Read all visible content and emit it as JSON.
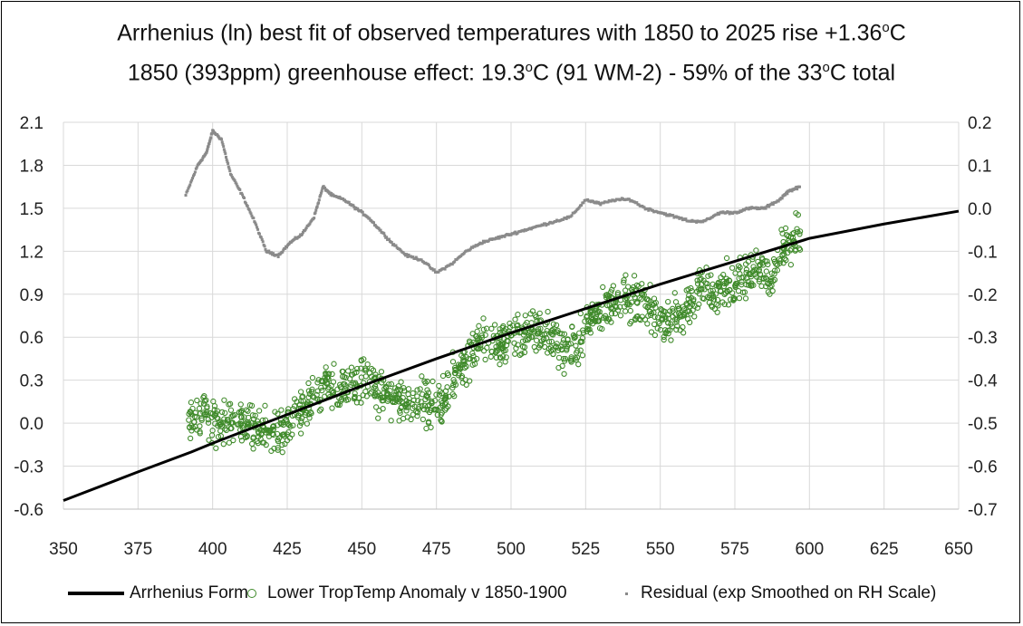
{
  "title": {
    "line1_pre": "Arrhenius (ln) best fit of observed temperatures with 1850 to 2025 rise +1.36",
    "line1_sup": "o",
    "line1_post": "C",
    "line2_pre": "1850 (393ppm) greenhouse effect: 19.3",
    "line2_sup1": "o",
    "line2_mid": "C (91 WM-2) - 59% of the 33",
    "line2_sup2": "o",
    "line2_post": "C total"
  },
  "legend": {
    "arrhenius": "Arrhenius Form",
    "anomaly": "Lower TropTemp Anomaly v 1850-1900",
    "residual": "Residual (exp Smoothed on RH Scale)"
  },
  "colors": {
    "arrhenius": "#000000",
    "anomaly": "#3f8a2a",
    "residual": "#8a8a8a",
    "grid": "#d9d9d9"
  },
  "chart_data": {
    "type": "scatter",
    "xlim": [
      350,
      650
    ],
    "ylim_left": [
      -0.6,
      2.1
    ],
    "ylim_right": [
      -0.7,
      0.2
    ],
    "x_ticks": [
      "350",
      "375",
      "400",
      "425",
      "450",
      "475",
      "500",
      "525",
      "550",
      "575",
      "600",
      "625",
      "650"
    ],
    "y_ticks_left": [
      "2.1",
      "1.8",
      "1.5",
      "1.2",
      "0.9",
      "0.6",
      "0.3",
      "0.0",
      "-0.3",
      "-0.6"
    ],
    "y_ticks_right": [
      "0.2",
      "0.1",
      "0.0",
      "-0.1",
      "-0.2",
      "-0.3",
      "-0.4",
      "-0.5",
      "-0.6",
      "-0.7"
    ],
    "grid": true,
    "legend_position": "bottom",
    "arrhenius_form": {
      "name": "Arrhenius Form",
      "x": [
        350,
        375,
        393,
        400,
        425,
        450,
        475,
        500,
        525,
        550,
        575,
        600,
        625,
        650
      ],
      "y": [
        -0.54,
        -0.34,
        -0.2,
        -0.14,
        0.06,
        0.26,
        0.45,
        0.63,
        0.8,
        0.97,
        1.13,
        1.29,
        1.39,
        1.48
      ]
    },
    "anomaly_trend": {
      "name": "Lower TropTemp Anomaly v 1850-1900",
      "x": [
        392,
        397,
        402,
        407,
        412,
        417,
        422,
        427,
        432,
        437,
        442,
        447,
        452,
        457,
        462,
        467,
        472,
        477,
        482,
        487,
        492,
        497,
        502,
        507,
        512,
        517,
        522,
        527,
        532,
        537,
        542,
        547,
        552,
        557,
        562,
        567,
        572,
        577,
        582,
        587,
        592,
        597
      ],
      "y": [
        0.02,
        0.05,
        0.0,
        0.02,
        -0.03,
        -0.05,
        -0.1,
        0.05,
        0.12,
        0.28,
        0.26,
        0.25,
        0.3,
        0.2,
        0.18,
        0.15,
        0.15,
        0.12,
        0.38,
        0.5,
        0.6,
        0.55,
        0.6,
        0.62,
        0.65,
        0.5,
        0.55,
        0.75,
        0.82,
        0.86,
        0.85,
        0.8,
        0.7,
        0.75,
        0.9,
        0.95,
        0.95,
        1.02,
        1.1,
        1.0,
        1.25,
        1.35
      ],
      "spread": 0.22,
      "points_per_segment": 32
    },
    "residual": {
      "name": "Residual (exp Smoothed on RH Scale)",
      "axis": "right",
      "x": [
        391,
        395,
        398,
        400,
        403,
        406,
        410,
        414,
        418,
        422,
        426,
        430,
        434,
        437,
        440,
        444,
        448,
        452,
        456,
        460,
        465,
        470,
        475,
        480,
        485,
        490,
        495,
        500,
        505,
        510,
        515,
        520,
        525,
        530,
        535,
        540,
        545,
        550,
        555,
        560,
        565,
        570,
        575,
        580,
        585,
        590,
        593,
        597
      ],
      "y": [
        0.03,
        0.1,
        0.13,
        0.18,
        0.16,
        0.08,
        0.03,
        -0.03,
        -0.1,
        -0.11,
        -0.08,
        -0.06,
        -0.02,
        0.05,
        0.03,
        0.02,
        0.0,
        -0.02,
        -0.05,
        -0.08,
        -0.11,
        -0.12,
        -0.15,
        -0.13,
        -0.1,
        -0.08,
        -0.07,
        -0.06,
        -0.05,
        -0.04,
        -0.03,
        -0.02,
        0.02,
        0.01,
        0.02,
        0.02,
        0.0,
        -0.01,
        -0.02,
        -0.03,
        -0.03,
        -0.01,
        -0.01,
        0.0,
        0.0,
        0.02,
        0.04,
        0.05
      ],
      "points_per_segment": 14
    }
  }
}
